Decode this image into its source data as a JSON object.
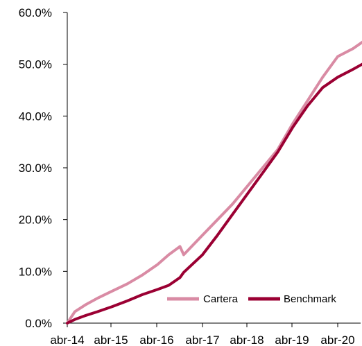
{
  "chart_data": {
    "type": "line",
    "title": "",
    "xlabel": "",
    "ylabel": "",
    "x_ticks": [
      "abr-14",
      "abr-15",
      "abr-16",
      "abr-17",
      "abr-18",
      "abr-19",
      "abr-20"
    ],
    "y_ticks": [
      "0.0%",
      "10.0%",
      "20.0%",
      "30.0%",
      "40.0%",
      "50.0%",
      "60.0%"
    ],
    "ylim": [
      0,
      60
    ],
    "grid": false,
    "legend_position": "bottom-right",
    "x_dates": [
      "2014-04",
      "2014-06",
      "2014-09",
      "2014-12",
      "2015-04",
      "2015-08",
      "2015-12",
      "2016-04",
      "2016-07",
      "2016-10",
      "2016-11",
      "2017-04",
      "2017-08",
      "2017-12",
      "2018-04",
      "2018-08",
      "2018-12",
      "2019-04",
      "2019-08",
      "2019-12",
      "2020-04",
      "2020-08",
      "2020-12"
    ],
    "series": [
      {
        "name": "Cartera",
        "color": "#d98ba4",
        "values": [
          0.0,
          2.2,
          3.6,
          4.8,
          6.2,
          7.6,
          9.3,
          11.3,
          13.2,
          14.8,
          13.2,
          17.0,
          20.0,
          23.0,
          26.5,
          30.0,
          33.5,
          38.5,
          43.0,
          47.5,
          51.5,
          53.0,
          55.0
        ]
      },
      {
        "name": "Benchmark",
        "color": "#9b0033",
        "values": [
          0.0,
          0.7,
          1.5,
          2.2,
          3.2,
          4.3,
          5.5,
          6.5,
          7.3,
          8.8,
          9.8,
          13.2,
          17.0,
          21.0,
          25.0,
          29.0,
          33.0,
          37.8,
          42.0,
          45.5,
          47.5,
          49.0,
          50.6
        ]
      }
    ]
  }
}
